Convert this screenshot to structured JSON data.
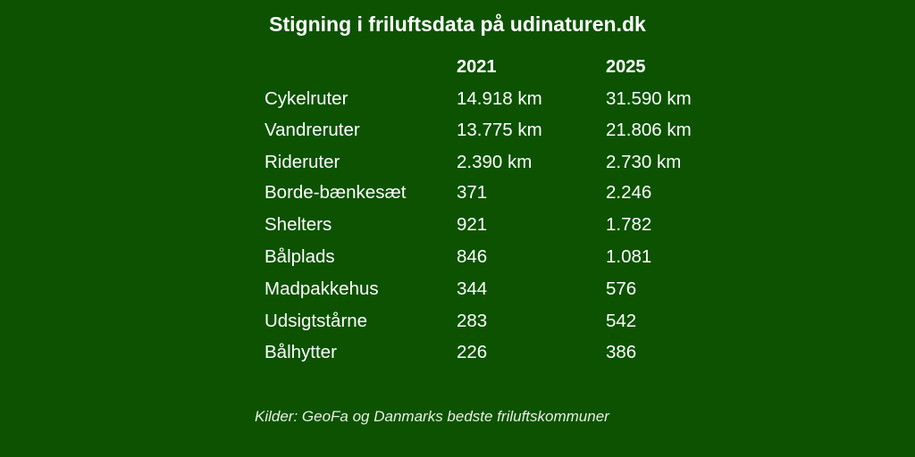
{
  "colors": {
    "background": "#0c5200",
    "text": "#ffffff"
  },
  "title": "Stigning i friluftsdata på udinaturen.dk",
  "source": "Kilder: GeoFa og Danmarks bedste friluftskommuner",
  "chart_data": {
    "type": "table",
    "title": "Stigning i friluftsdata på udinaturen.dk",
    "columns": [
      "",
      "2021",
      "2025"
    ],
    "rows": [
      {
        "label": "Cykelruter",
        "v2021": "14.918 km",
        "v2025": "31.590 km"
      },
      {
        "label": "Vandreruter",
        "v2021": "13.775 km",
        "v2025": "21.806 km"
      },
      {
        "label": "Rideruter",
        "v2021": "2.390 km",
        "v2025": "2.730 km"
      },
      {
        "label": "Borde-bænkesæt",
        "v2021": "371",
        "v2025": "2.246"
      },
      {
        "label": "Shelters",
        "v2021": "921",
        "v2025": "1.782"
      },
      {
        "label": "Bålplads",
        "v2021": "846",
        "v2025": "1.081"
      },
      {
        "label": "Madpakkehus",
        "v2021": "344",
        "v2025": "576"
      },
      {
        "label": "Udsigtstårne",
        "v2021": "283",
        "v2025": "542"
      },
      {
        "label": "Bålhytter",
        "v2021": "226",
        "v2025": "386"
      }
    ],
    "source": "Kilder: GeoFa og Danmarks bedste friluftskommuner"
  }
}
